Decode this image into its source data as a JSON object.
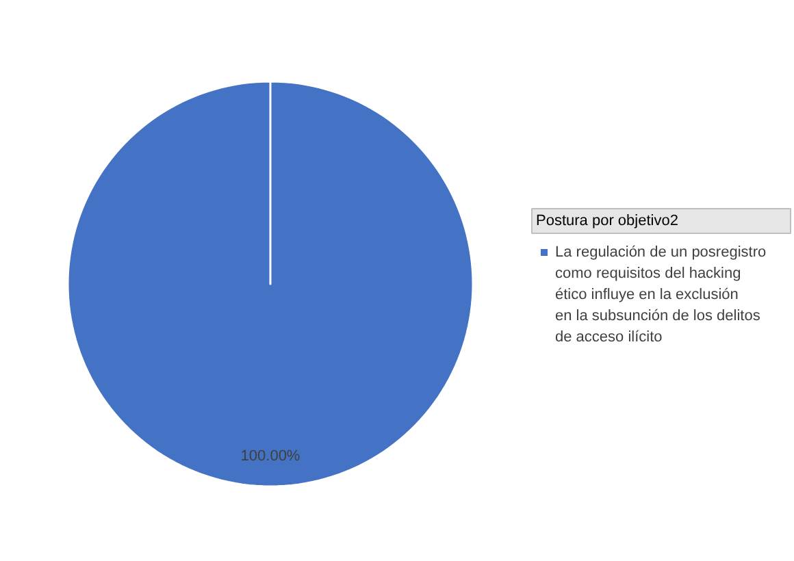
{
  "chart_data": {
    "type": "pie",
    "legend_title": "Postura por objetivo2",
    "categories": [
      "La regulación de un posregistro como requisitos del hacking ético influye en la exclusión en la subsunción de los delitos de acceso ilícito"
    ],
    "values": [
      100
    ],
    "colors": [
      "#4472c4"
    ],
    "value_labels": [
      "100.00%"
    ],
    "legend": "right"
  }
}
